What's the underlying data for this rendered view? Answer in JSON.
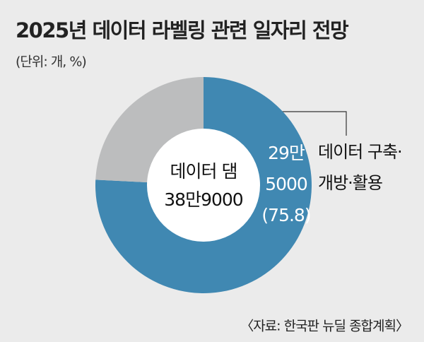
{
  "chart_data": {
    "type": "donut",
    "title": "2025년 데이터 라벨링 관련 일자리 전망",
    "subtitle": "(단위: 개, %)",
    "categories": [
      "데이터 구축·개방·활용",
      null
    ],
    "annotation_lines": [
      "데이터 구축·",
      "개방·활용"
    ],
    "values": [
      75.8,
      24.2
    ],
    "value_labels": [
      "(75.8)",
      null
    ],
    "count_labels": [
      [
        "29만",
        "5000"
      ],
      null
    ],
    "colors": [
      "#4088b2",
      "#bcbdbe"
    ],
    "center_lines": [
      "데이터 댐",
      "38만9000"
    ],
    "source": "〈자료: 한국판 뉴딜 종합계획〉"
  }
}
